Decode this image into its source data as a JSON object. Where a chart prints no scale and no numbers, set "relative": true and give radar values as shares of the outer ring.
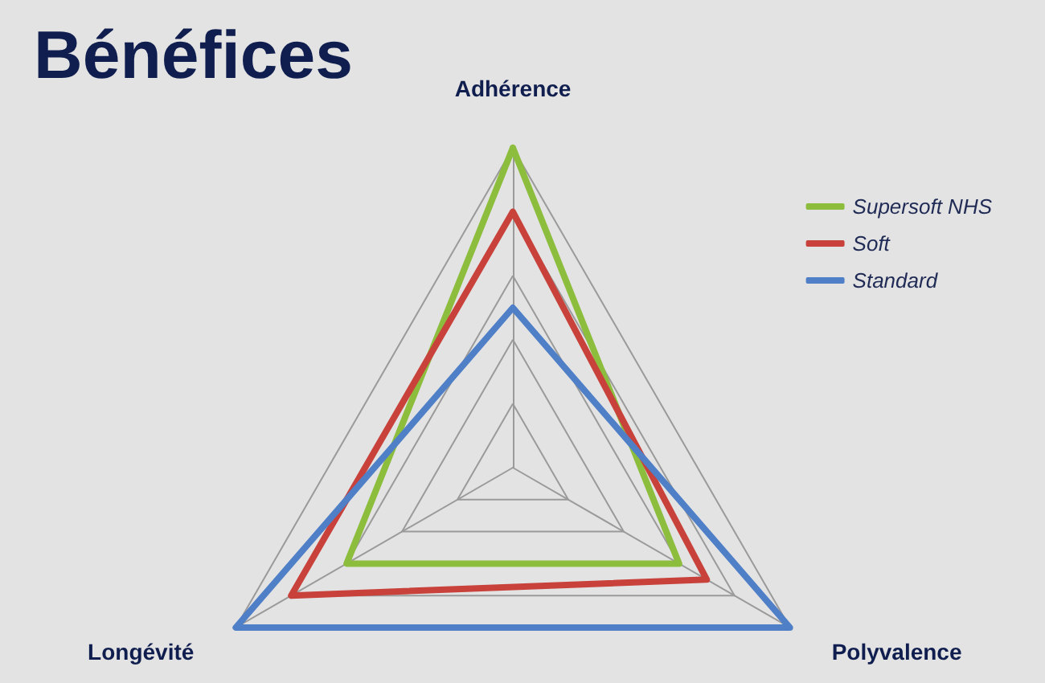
{
  "chart_data": {
    "type": "radar",
    "title": "Bénéfices",
    "categories": [
      "Adhérence",
      "Polyvalence",
      "Longévité"
    ],
    "relative": true,
    "series": [
      {
        "name": "Supersoft NHS",
        "color": "#8dbd3c",
        "values": [
          1,
          0.6,
          0.6
        ]
      },
      {
        "name": "Soft",
        "color": "#c8423b",
        "values": [
          0.8,
          0.7,
          0.8
        ]
      },
      {
        "name": "Standard",
        "color": "#4f7fc6",
        "values": [
          0.5,
          1,
          1
        ]
      }
    ],
    "legend": "top right",
    "marker": "none",
    "grid": true
  }
}
